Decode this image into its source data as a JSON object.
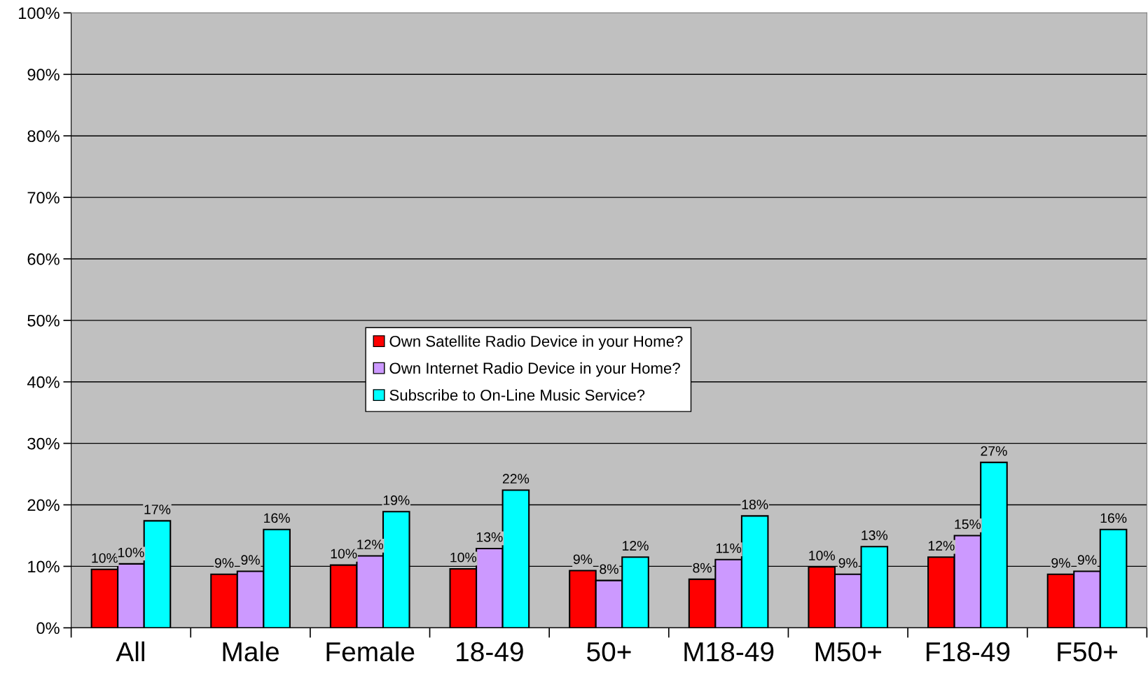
{
  "chart_data": {
    "type": "bar",
    "categories": [
      "All",
      "Male",
      "Female",
      "18-49",
      "50+",
      "M18-49",
      "M50+",
      "F18-49",
      "F50+"
    ],
    "series": [
      {
        "name": "Own Satellite Radio Device in your Home?",
        "color": "#ff0000",
        "values": [
          9.5,
          8.7,
          10.2,
          9.6,
          9.3,
          7.9,
          9.9,
          11.5,
          8.7
        ],
        "value_labels": [
          "10%",
          "9%",
          "10%",
          "10%",
          "9%",
          "8%",
          "10%",
          "12%",
          "9%"
        ]
      },
      {
        "name": "Own Internet Radio Device in your Home?",
        "color": "#cc99ff",
        "values": [
          10.4,
          9.2,
          11.7,
          12.9,
          7.7,
          11.1,
          8.7,
          15.0,
          9.2
        ],
        "value_labels": [
          "10%",
          "9%",
          "12%",
          "13%",
          "8%",
          "11%",
          "9%",
          "15%",
          "9%"
        ]
      },
      {
        "name": "Subscribe to On-Line Music Service?",
        "color": "#00ffff",
        "values": [
          17.4,
          16.0,
          18.9,
          22.4,
          11.5,
          18.2,
          13.2,
          26.9,
          16.0
        ],
        "value_labels": [
          "17%",
          "16%",
          "19%",
          "22%",
          "12%",
          "18%",
          "13%",
          "27%",
          "16%"
        ]
      }
    ],
    "ylim": [
      0,
      100
    ],
    "yticks": [
      {
        "value": 0,
        "label": "0%"
      },
      {
        "value": 10,
        "label": "10%"
      },
      {
        "value": 20,
        "label": "20%"
      },
      {
        "value": 30,
        "label": "30%"
      },
      {
        "value": 40,
        "label": "40%"
      },
      {
        "value": 50,
        "label": "50%"
      },
      {
        "value": 60,
        "label": "60%"
      },
      {
        "value": 70,
        "label": "70%"
      },
      {
        "value": 80,
        "label": "80%"
      },
      {
        "value": 90,
        "label": "90%"
      },
      {
        "value": 100,
        "label": "100%"
      }
    ],
    "grid": "y",
    "legend": "center"
  }
}
